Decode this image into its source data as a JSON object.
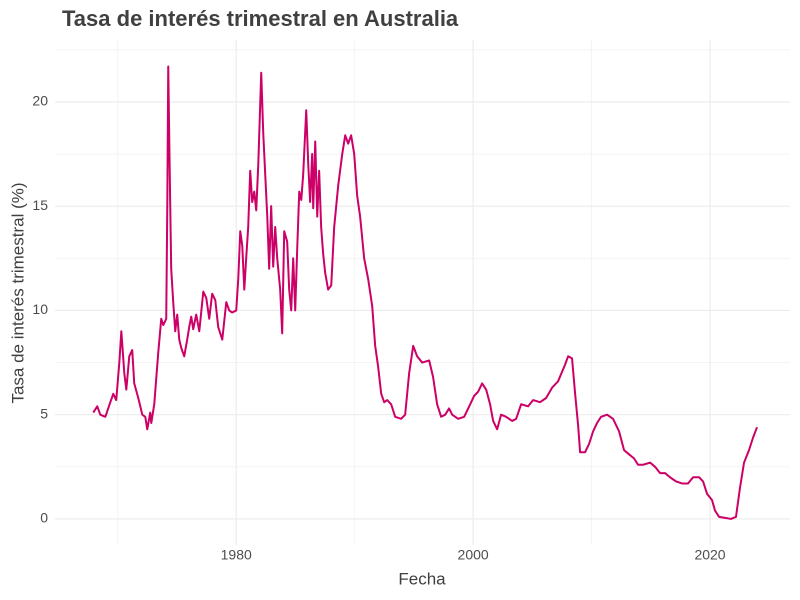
{
  "chart_data": {
    "type": "line",
    "title": "Tasa de interés trimestral en Australia",
    "x_label": "Fecha",
    "y_label": "Tasa de interés trimestral (%)",
    "color": "#cc0066",
    "grid": true,
    "xlim": [
      1964.7,
      2026.75
    ],
    "ylim": [
      -1.25,
      22.97
    ],
    "xticks": [
      1980,
      2000,
      2020
    ],
    "yticks": [
      0,
      5,
      10,
      15,
      20
    ],
    "x": [
      1967.93,
      1968.27,
      1968.52,
      1968.95,
      1969.37,
      1969.62,
      1969.87,
      1970.13,
      1970.3,
      1970.55,
      1970.72,
      1970.97,
      1971.22,
      1971.39,
      1971.73,
      1972.07,
      1972.32,
      1972.49,
      1972.74,
      1972.83,
      1973.08,
      1973.42,
      1973.67,
      1973.84,
      1974.09,
      1974.18,
      1974.26,
      1974.35,
      1974.51,
      1974.68,
      1974.85,
      1975.02,
      1975.19,
      1975.36,
      1975.61,
      1975.86,
      1976.03,
      1976.2,
      1976.37,
      1976.62,
      1976.88,
      1977.22,
      1977.47,
      1977.72,
      1977.97,
      1978.23,
      1978.48,
      1978.82,
      1979.16,
      1979.41,
      1979.66,
      1980.0,
      1980.17,
      1980.34,
      1980.51,
      1980.68,
      1980.84,
      1981.01,
      1981.18,
      1981.35,
      1981.52,
      1981.69,
      1981.86,
      1982.11,
      1982.28,
      1982.45,
      1982.62,
      1982.78,
      1982.95,
      1983.12,
      1983.29,
      1983.46,
      1983.71,
      1983.88,
      1984.05,
      1984.3,
      1984.47,
      1984.64,
      1984.81,
      1984.98,
      1985.15,
      1985.32,
      1985.49,
      1985.65,
      1985.91,
      1986.08,
      1986.24,
      1986.41,
      1986.5,
      1986.67,
      1986.84,
      1987.0,
      1987.17,
      1987.34,
      1987.51,
      1987.76,
      1988.02,
      1988.27,
      1988.61,
      1988.95,
      1989.2,
      1989.45,
      1989.7,
      1989.96,
      1990.21,
      1990.46,
      1990.8,
      1991.14,
      1991.48,
      1991.73,
      1991.98,
      1992.24,
      1992.49,
      1992.74,
      1993.08,
      1993.42,
      1993.92,
      1994.26,
      1994.6,
      1994.94,
      1995.27,
      1995.7,
      1996.29,
      1996.62,
      1996.96,
      1997.3,
      1997.64,
      1997.97,
      1998.23,
      1998.73,
      1999.24,
      1999.75,
      2000.08,
      2000.42,
      2000.76,
      2001.1,
      2001.43,
      2001.69,
      2002.03,
      2002.36,
      2002.78,
      2003.29,
      2003.63,
      2004.05,
      2004.64,
      2005.06,
      2005.65,
      2006.16,
      2006.67,
      2007.17,
      2007.76,
      2008.02,
      2008.35,
      2008.61,
      2008.86,
      2009.03,
      2009.45,
      2009.79,
      2010.13,
      2010.46,
      2010.8,
      2011.31,
      2011.81,
      2012.32,
      2012.74,
      2013.16,
      2013.59,
      2013.92,
      2014.35,
      2014.94,
      2015.36,
      2015.78,
      2016.2,
      2016.62,
      2017.13,
      2017.64,
      2018.14,
      2018.57,
      2019.07,
      2019.41,
      2019.75,
      2020.17,
      2020.42,
      2020.76,
      2021.27,
      2021.77,
      2022.19,
      2022.53,
      2022.87,
      2023.29,
      2023.63,
      2023.97
    ],
    "values": [
      5.1,
      5.4,
      5.0,
      4.9,
      5.6,
      6.0,
      5.7,
      7.5,
      9.0,
      7.0,
      6.2,
      7.8,
      8.1,
      6.5,
      5.8,
      5.0,
      4.9,
      4.3,
      5.1,
      4.6,
      5.5,
      8.0,
      9.6,
      9.3,
      9.6,
      15.0,
      21.7,
      18.0,
      12.0,
      10.4,
      9.0,
      9.8,
      8.6,
      8.2,
      7.8,
      8.6,
      9.2,
      9.7,
      9.1,
      9.8,
      9.0,
      10.9,
      10.6,
      9.6,
      10.8,
      10.5,
      9.2,
      8.6,
      10.4,
      10.0,
      9.9,
      10.0,
      11.5,
      13.8,
      13.1,
      11.0,
      12.5,
      14.0,
      16.7,
      15.2,
      15.7,
      14.8,
      17.0,
      21.4,
      18.5,
      16.5,
      14.5,
      12.0,
      15.0,
      12.1,
      14.0,
      12.5,
      11.0,
      8.9,
      13.8,
      13.3,
      11.0,
      10.0,
      12.5,
      10.0,
      13.0,
      15.7,
      15.3,
      16.5,
      19.6,
      17.0,
      15.2,
      17.5,
      14.9,
      18.1,
      14.5,
      16.7,
      14.0,
      12.7,
      11.8,
      11.0,
      11.2,
      14.0,
      16.0,
      17.5,
      18.4,
      18.0,
      18.4,
      17.5,
      15.5,
      14.5,
      12.5,
      11.5,
      10.2,
      8.3,
      7.3,
      6.0,
      5.6,
      5.7,
      5.5,
      4.9,
      4.8,
      5.0,
      7.0,
      8.3,
      7.8,
      7.5,
      7.6,
      6.8,
      5.5,
      4.9,
      5.0,
      5.3,
      5.0,
      4.8,
      4.9,
      5.5,
      5.9,
      6.1,
      6.5,
      6.2,
      5.5,
      4.7,
      4.3,
      5.0,
      4.9,
      4.7,
      4.8,
      5.5,
      5.4,
      5.7,
      5.6,
      5.8,
      6.3,
      6.6,
      7.4,
      7.8,
      7.7,
      6.0,
      4.5,
      3.2,
      3.2,
      3.6,
      4.2,
      4.6,
      4.9,
      5.0,
      4.8,
      4.2,
      3.3,
      3.1,
      2.9,
      2.6,
      2.6,
      2.7,
      2.5,
      2.2,
      2.2,
      2.0,
      1.8,
      1.7,
      1.7,
      2.0,
      2.0,
      1.8,
      1.2,
      0.9,
      0.4,
      0.1,
      0.05,
      0.0,
      0.1,
      1.5,
      2.7,
      3.3,
      3.9,
      4.4
    ]
  }
}
